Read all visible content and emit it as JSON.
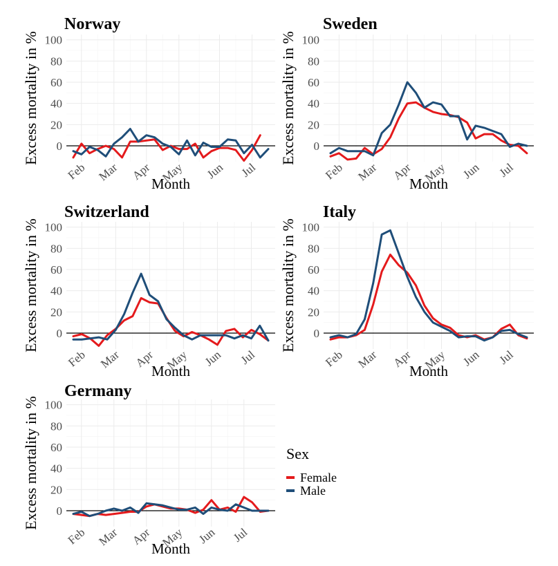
{
  "chart_data": [
    {
      "type": "line",
      "title": "Norway",
      "xlabel": "Month",
      "ylabel": "Excess mortality in %",
      "ylim": [
        -15,
        105
      ],
      "yticks": [
        0,
        20,
        40,
        60,
        80,
        100
      ],
      "xticks": [
        {
          "label": "Feb",
          "week": 1
        },
        {
          "label": "Mar",
          "week": 5
        },
        {
          "label": "Apr",
          "week": 9
        },
        {
          "label": "May",
          "week": 13
        },
        {
          "label": "Jun",
          "week": 18
        },
        {
          "label": "Jul",
          "week": 22
        }
      ],
      "series": [
        {
          "name": "Female",
          "values": [
            -11,
            2,
            -7,
            -3,
            0,
            -3,
            -11,
            4,
            4,
            5,
            6,
            -4,
            0,
            -3,
            -3,
            2,
            -11,
            -5,
            -2,
            -2,
            -4,
            -14,
            -4,
            10
          ]
        },
        {
          "name": "Male",
          "values": [
            -5,
            -8,
            -1,
            -4,
            -10,
            2,
            8,
            16,
            4,
            10,
            8,
            2,
            -1,
            -8,
            5,
            -9,
            3,
            -1,
            -1,
            6,
            5,
            -7,
            1,
            -11,
            -3
          ]
        }
      ]
    },
    {
      "type": "line",
      "title": "Sweden",
      "xlabel": "Month",
      "ylabel": "Excess mortality in %",
      "ylim": [
        -15,
        105
      ],
      "yticks": [
        0,
        20,
        40,
        60,
        80,
        100
      ],
      "xticks": [
        {
          "label": "Feb",
          "week": 1
        },
        {
          "label": "Mar",
          "week": 5
        },
        {
          "label": "Apr",
          "week": 9
        },
        {
          "label": "May",
          "week": 13
        },
        {
          "label": "Jun",
          "week": 17
        },
        {
          "label": "Jul",
          "week": 21
        }
      ],
      "series": [
        {
          "name": "Female",
          "values": [
            -10,
            -7,
            -13,
            -12,
            -2,
            -8,
            -3,
            8,
            26,
            40,
            41,
            36,
            32,
            30,
            29,
            27,
            22,
            7,
            11,
            11,
            5,
            1,
            0,
            -7
          ]
        },
        {
          "name": "Male",
          "values": [
            -7,
            -2,
            -5,
            -5,
            -5,
            -9,
            12,
            20,
            39,
            60,
            50,
            36,
            41,
            39,
            28,
            28,
            6,
            19,
            17,
            14,
            11,
            -1,
            2,
            0
          ]
        }
      ]
    },
    {
      "type": "line",
      "title": "Switzerland",
      "xlabel": "Month",
      "ylabel": "Excess mortality in %",
      "ylim": [
        -15,
        105
      ],
      "yticks": [
        0,
        20,
        40,
        60,
        80,
        100
      ],
      "xticks": [
        {
          "label": "Feb",
          "week": 1
        },
        {
          "label": "Mar",
          "week": 5
        },
        {
          "label": "Apr",
          "week": 9
        },
        {
          "label": "May",
          "week": 13
        },
        {
          "label": "Jun",
          "week": 17
        },
        {
          "label": "Jul",
          "week": 21
        }
      ],
      "series": [
        {
          "name": "Female",
          "values": [
            -3,
            -1,
            -5,
            -12,
            -2,
            4,
            12,
            16,
            33,
            29,
            28,
            14,
            2,
            -3,
            1,
            -2,
            -6,
            -11,
            2,
            4,
            -4,
            3,
            -1,
            -7
          ]
        },
        {
          "name": "Male",
          "values": [
            -6,
            -6,
            -5,
            -4,
            -6,
            3,
            18,
            38,
            56,
            36,
            30,
            13,
            5,
            -2,
            -6,
            -2,
            -2,
            -2,
            -2,
            -5,
            -2,
            -5,
            7,
            -7
          ]
        }
      ]
    },
    {
      "type": "line",
      "title": "Italy",
      "xlabel": "Month",
      "ylabel": "Excess mortality in %",
      "ylim": [
        -15,
        105
      ],
      "yticks": [
        0,
        20,
        40,
        60,
        80,
        100
      ],
      "xticks": [
        {
          "label": "Feb",
          "week": 1
        },
        {
          "label": "Mar",
          "week": 5
        },
        {
          "label": "Apr",
          "week": 9
        },
        {
          "label": "May",
          "week": 13
        },
        {
          "label": "Jun",
          "week": 17
        },
        {
          "label": "Jul",
          "week": 21
        }
      ],
      "series": [
        {
          "name": "Female",
          "values": [
            -6,
            -4,
            -4,
            -2,
            3,
            27,
            58,
            74,
            64,
            57,
            45,
            26,
            14,
            8,
            5,
            -2,
            -4,
            -2,
            -6,
            -4,
            4,
            8,
            -2,
            -5
          ]
        },
        {
          "name": "Male",
          "values": [
            -4,
            -2,
            -4,
            -1,
            13,
            47,
            93,
            97,
            75,
            53,
            34,
            20,
            10,
            6,
            2,
            -4,
            -3,
            -3,
            -7,
            -4,
            2,
            3,
            -1,
            -4
          ]
        }
      ]
    },
    {
      "type": "line",
      "title": "Germany",
      "xlabel": "Month",
      "ylabel": "Excess mortality in %",
      "ylim": [
        -15,
        105
      ],
      "yticks": [
        0,
        20,
        40,
        60,
        80,
        100
      ],
      "xticks": [
        {
          "label": "Feb",
          "week": 1
        },
        {
          "label": "Mar",
          "week": 5
        },
        {
          "label": "Apr",
          "week": 9
        },
        {
          "label": "May",
          "week": 13
        },
        {
          "label": "Jun",
          "week": 17
        },
        {
          "label": "Jul",
          "week": 21
        }
      ],
      "series": [
        {
          "name": "Female",
          "values": [
            -3,
            -4,
            -5,
            -3,
            -4,
            -3,
            -2,
            -1,
            -1,
            4,
            6,
            4,
            2,
            2,
            1,
            -2,
            1,
            10,
            1,
            3,
            -1,
            13,
            8,
            -1,
            0
          ]
        },
        {
          "name": "Male",
          "values": [
            -3,
            -1,
            -5,
            -3,
            0,
            2,
            0,
            3,
            -2,
            7,
            6,
            5,
            3,
            1,
            1,
            3,
            -3,
            3,
            1,
            0,
            6,
            3,
            0,
            0,
            0
          ]
        }
      ]
    }
  ],
  "legend": {
    "title": "Sex",
    "items": [
      {
        "label": "Female",
        "color": "#e41a1c"
      },
      {
        "label": "Male",
        "color": "#1f4e79"
      }
    ]
  }
}
